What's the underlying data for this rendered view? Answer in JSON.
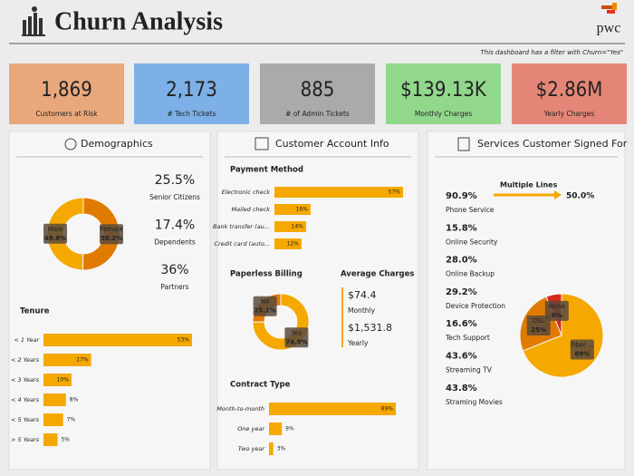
{
  "header": {
    "title": "Churn Analysis",
    "logo": "pwc",
    "filter_note": "This dashboard has a filter with Churn=\"Yes\""
  },
  "kpis": [
    {
      "value": "1,869",
      "label": "Customers at Risk",
      "color": "#e8a87c"
    },
    {
      "value": "2,173",
      "label": "# Tech Tickets",
      "color": "#7cb0e6"
    },
    {
      "value": "885",
      "label": "# of Admin Tickets",
      "color": "#aaaaaa"
    },
    {
      "value": "$139.13K",
      "label": "Monthly Charges",
      "color": "#92d88c"
    },
    {
      "value": "$2.86M",
      "label": "Yearly Charges",
      "color": "#e48677"
    }
  ],
  "panels": [
    {
      "title": "Demographics",
      "stats": [
        {
          "value": "25.5%",
          "label": "Senior Citizens"
        },
        {
          "value": "17.4%",
          "label": "Dependents"
        },
        {
          "value": "36%",
          "label": "Partners"
        }
      ]
    },
    {
      "title": "Customer Account Info",
      "average_charges": {
        "title": "Average Charges",
        "items": [
          {
            "value": "$74.4",
            "label": "Monthly"
          },
          {
            "value": "$1,531.8",
            "label": "Yearly"
          }
        ]
      }
    },
    {
      "title": "Services Customer Signed For",
      "stats": [
        {
          "value": "90.9%",
          "label": "Phone Service"
        },
        {
          "value": "15.8%",
          "label": "Online Security"
        },
        {
          "value": "28.0%",
          "label": "Online Backup"
        },
        {
          "value": "29.2%",
          "label": "Device Protection"
        },
        {
          "value": "16.6%",
          "label": "Tech Support"
        },
        {
          "value": "43.6%",
          "label": "Streaming TV"
        },
        {
          "value": "43.8%",
          "label": "Straming Movies"
        }
      ],
      "multiple_lines": {
        "label": "Multiple Lines",
        "value": "50.0%"
      }
    }
  ],
  "chart_data": [
    {
      "type": "donut",
      "categories": [
        "Male",
        "Female"
      ],
      "values": [
        49.8,
        50.2
      ],
      "value_labels": [
        "49.8%",
        "50.2%"
      ],
      "colors": [
        "#f5a800",
        "#e07b00"
      ]
    },
    {
      "type": "bar",
      "title": "Tenure",
      "categories": [
        "< 1 Year",
        "< 2 Years",
        "< 3 Years",
        "< 4 Years",
        "< 5 Years",
        "> 5 Years"
      ],
      "values": [
        53,
        17,
        10,
        8,
        7,
        5
      ],
      "value_labels": [
        "53%",
        "17%",
        "10%",
        "8%",
        "7%",
        "5%"
      ],
      "color": "#f5a800"
    },
    {
      "type": "bar",
      "title": "Payment Method",
      "categories": [
        "Electronic check",
        "Mailed check",
        "Bank transfer (au...",
        "Credit card (auto..."
      ],
      "values": [
        57,
        16,
        14,
        12
      ],
      "value_labels": [
        "57%",
        "16%",
        "14%",
        "12%"
      ],
      "color": "#f5a800"
    },
    {
      "type": "donut",
      "title": "Paperless Billing",
      "categories": [
        "No",
        "Yes"
      ],
      "values": [
        25.1,
        74.9
      ],
      "value_labels": [
        "25.1%",
        "74.9%"
      ],
      "colors": [
        "#e07b00",
        "#f5a800"
      ]
    },
    {
      "type": "bar",
      "title": "Contract Type",
      "categories": [
        "Month-to-month",
        "One year",
        "Two year"
      ],
      "values": [
        89,
        9,
        3
      ],
      "value_labels": [
        "89%",
        "9%",
        "3%"
      ],
      "color": "#f5a800"
    },
    {
      "type": "pie",
      "categories": [
        "Fiber ...",
        "DSL",
        "None"
      ],
      "values": [
        69,
        25,
        6
      ],
      "value_labels": [
        "69%",
        "25%",
        "6%"
      ],
      "colors": [
        "#f5a800",
        "#e07b00",
        "#d62a1e"
      ]
    }
  ]
}
